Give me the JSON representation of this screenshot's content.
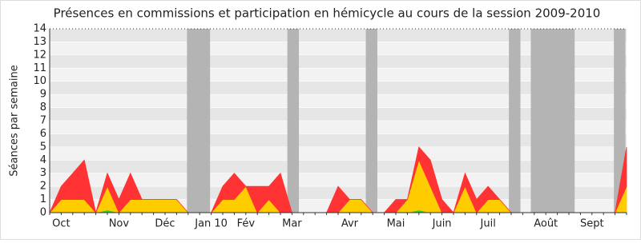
{
  "chart_data": {
    "type": "stacked_area",
    "title": "Présences en commissions et participation en hémicycle au cours de la session 2009-2010",
    "y_label": "Séances par semaine",
    "categories": [
      null,
      "Oct",
      null,
      null,
      null,
      null,
      "Nov",
      null,
      null,
      null,
      "Déc",
      null,
      null,
      null,
      "Jan 10",
      null,
      null,
      "Fév",
      null,
      null,
      null,
      "Mar",
      null,
      null,
      null,
      null,
      "Avr",
      null,
      null,
      null,
      "Mai",
      null,
      null,
      null,
      "Juin",
      null,
      null,
      null,
      "Juil",
      null,
      null,
      null,
      null,
      "Août",
      null,
      null,
      null,
      "Sept",
      null,
      null,
      null
    ],
    "series": [
      {
        "color": "#33cc33",
        "values": [
          0,
          0,
          0,
          0,
          0,
          0.2,
          0,
          0,
          0,
          0,
          0,
          0,
          0,
          0,
          0,
          0,
          0,
          0,
          0,
          0,
          0,
          0,
          0,
          0,
          0,
          0,
          0,
          0,
          0,
          0,
          0,
          0,
          0.2,
          0,
          0,
          0,
          0,
          0,
          0,
          0,
          0,
          0,
          0,
          0,
          0,
          0,
          0,
          0,
          0,
          0,
          0
        ]
      },
      {
        "color": "#ffcc00",
        "values": [
          0,
          1,
          1,
          1,
          0,
          1.8,
          0,
          1,
          1,
          1,
          1,
          1,
          0,
          0,
          0,
          1,
          1,
          2,
          0,
          1,
          0,
          0,
          0,
          0,
          0,
          0,
          1,
          1,
          0,
          0,
          0,
          1,
          3.8,
          2,
          0,
          0,
          2,
          0,
          1,
          1,
          0,
          0,
          0,
          0,
          0,
          0,
          0,
          0,
          0,
          0,
          2
        ]
      },
      {
        "color": "#ff3333",
        "values": [
          0,
          1,
          2,
          3,
          0,
          1,
          1,
          2,
          0,
          0,
          0,
          0,
          0,
          0,
          0,
          1,
          2,
          0,
          2,
          1,
          3,
          0,
          0,
          0,
          0,
          2,
          0,
          0,
          0,
          0,
          1,
          0,
          1,
          2,
          1,
          0,
          1,
          1,
          1,
          0,
          0,
          0,
          0,
          0,
          0,
          0,
          0,
          0,
          0,
          0,
          3
        ]
      }
    ],
    "shaded_ranges": [
      [
        11.9,
        13.9
      ],
      [
        20.6,
        21.6
      ],
      [
        27.4,
        28.4
      ],
      [
        39.8,
        40.8
      ],
      [
        41.7,
        45.5
      ],
      [
        48.9,
        49.9
      ]
    ],
    "shade_color": "#b4b4b4",
    "ylim": [
      0,
      14
    ],
    "yticks": [
      0,
      1,
      2,
      3,
      4,
      5,
      6,
      7,
      8,
      9,
      10,
      11,
      12,
      13,
      14
    ],
    "grid": true
  }
}
